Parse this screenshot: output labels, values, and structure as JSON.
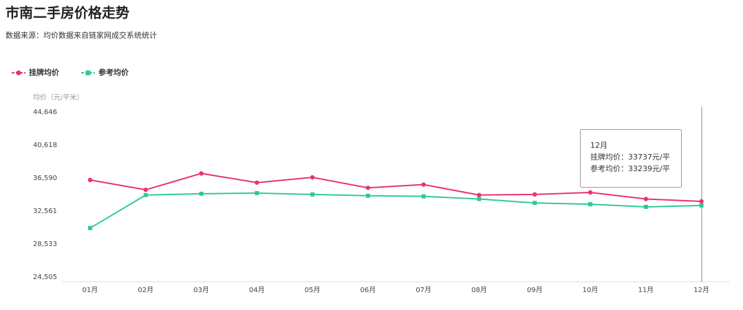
{
  "chart_data": {
    "type": "line",
    "title": "市南二手房价格走势",
    "subtitle": "数据来源：均价数据来自链家网成交系统统计",
    "y_label": "均价（元/平米）",
    "categories": [
      "01月",
      "02月",
      "03月",
      "04月",
      "05月",
      "06月",
      "07月",
      "08月",
      "09月",
      "10月",
      "11月",
      "12月"
    ],
    "series": [
      {
        "name": "挂牌均价",
        "color": "#e8336b",
        "marker": "circle",
        "values": [
          36350,
          35150,
          37150,
          36030,
          36670,
          35390,
          35790,
          34510,
          34590,
          34830,
          34030,
          33737
        ]
      },
      {
        "name": "参考均价",
        "color": "#2ecb91",
        "marker": "square",
        "values": [
          30480,
          34510,
          34670,
          34750,
          34590,
          34430,
          34350,
          34030,
          33550,
          33390,
          33070,
          33239
        ]
      }
    ],
    "ylim": [
      24505,
      44646
    ],
    "yticks": [
      {
        "value": 24505,
        "label": "24,505"
      },
      {
        "value": 28533,
        "label": "28,533"
      },
      {
        "value": 32561,
        "label": "32,561"
      },
      {
        "value": 36590,
        "label": "36,590"
      },
      {
        "value": 40618,
        "label": "40,618"
      },
      {
        "value": 44646,
        "label": "44,646"
      }
    ],
    "grid": false,
    "legend": "top-left",
    "tooltip": {
      "title": "12月",
      "lines": [
        "挂牌均价：33737元/平",
        "参考均价：33239元/平"
      ]
    }
  }
}
